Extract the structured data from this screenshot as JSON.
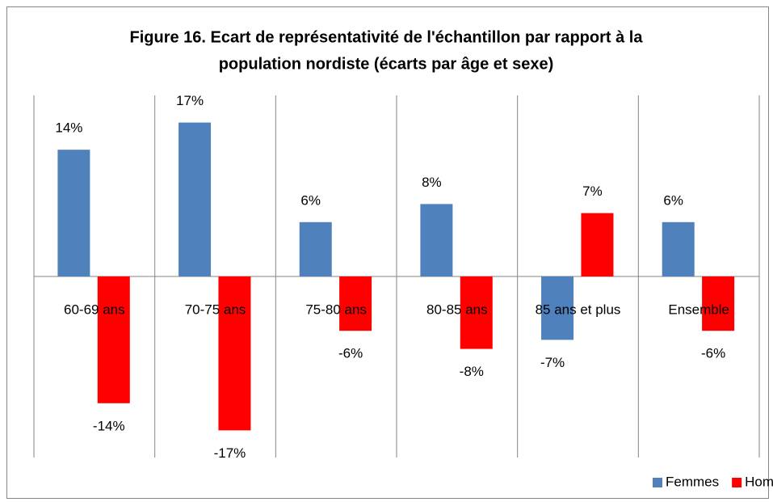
{
  "chart_data": {
    "type": "bar",
    "title": [
      "Figure 16. Ecart de représentativité de l'échantillon par rapport à la",
      "population nordiste (écarts par âge et sexe)"
    ],
    "categories": [
      "60-69 ans",
      "70-75 ans",
      "75-80 ans",
      "80-85 ans",
      "85 ans et plus",
      "Ensemble"
    ],
    "series": [
      {
        "name": "Femmes",
        "color": "#4f81bd",
        "values": [
          14,
          17,
          6,
          8,
          -7,
          6
        ],
        "value_labels": [
          "14%",
          "17%",
          "6%",
          "8%",
          "-7%",
          "6%"
        ]
      },
      {
        "name": "Hommes",
        "color": "#ff0000",
        "values": [
          -14,
          -17,
          -6,
          -8,
          7,
          -6
        ],
        "value_labels": [
          "-14%",
          "-17%",
          "-6%",
          "-8%",
          "7%",
          "-6%"
        ]
      }
    ],
    "ylim": [
      -20,
      20
    ],
    "legend": "bottom-right"
  }
}
